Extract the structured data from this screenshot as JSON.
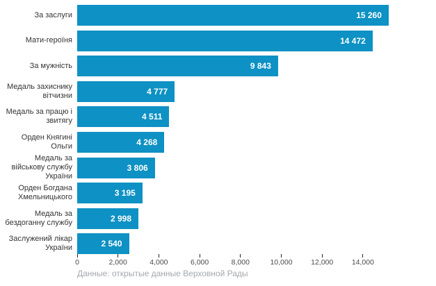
{
  "chart_data": {
    "type": "bar",
    "orientation": "horizontal",
    "title": "",
    "categories": [
      "За заслуги",
      "Мати-героїня",
      "За мужність",
      "Медаль захиснику вітчизни",
      "Медаль за працю і звитягу",
      "Орден Княгині Ольги",
      "Медаль за військову службу України",
      "Орден Богдана Хмельницького",
      "Медаль за бездоганну службу",
      "Заслужений лікар України"
    ],
    "values": [
      15260,
      14472,
      9843,
      4777,
      4511,
      4268,
      3806,
      3195,
      2998,
      2540
    ],
    "value_labels": [
      "15 260",
      "14 472",
      "9 843",
      "4 777",
      "4 511",
      "4 268",
      "3 806",
      "3 195",
      "2 998",
      "2 540"
    ],
    "x_tick_values": [
      0,
      2000,
      4000,
      6000,
      8000,
      10000,
      12000,
      14000
    ],
    "x_tick_labels": [
      "0",
      "2,000",
      "4,000",
      "6,000",
      "8,000",
      "10,000",
      "12,000",
      "14,000"
    ],
    "xlim": [
      0,
      15800
    ],
    "grid": false,
    "legend": false,
    "value_label_position": "inside-end",
    "caption": "Данные: открытые данные Верховной Рады"
  },
  "colors": {
    "bar": "#0e91c4",
    "value_label": "#ffffff",
    "category_label": "#333333",
    "tick_label": "#4a4a4a",
    "tick_mark": "#222222",
    "caption": "#a3a8ad",
    "background": "#ffffff"
  }
}
